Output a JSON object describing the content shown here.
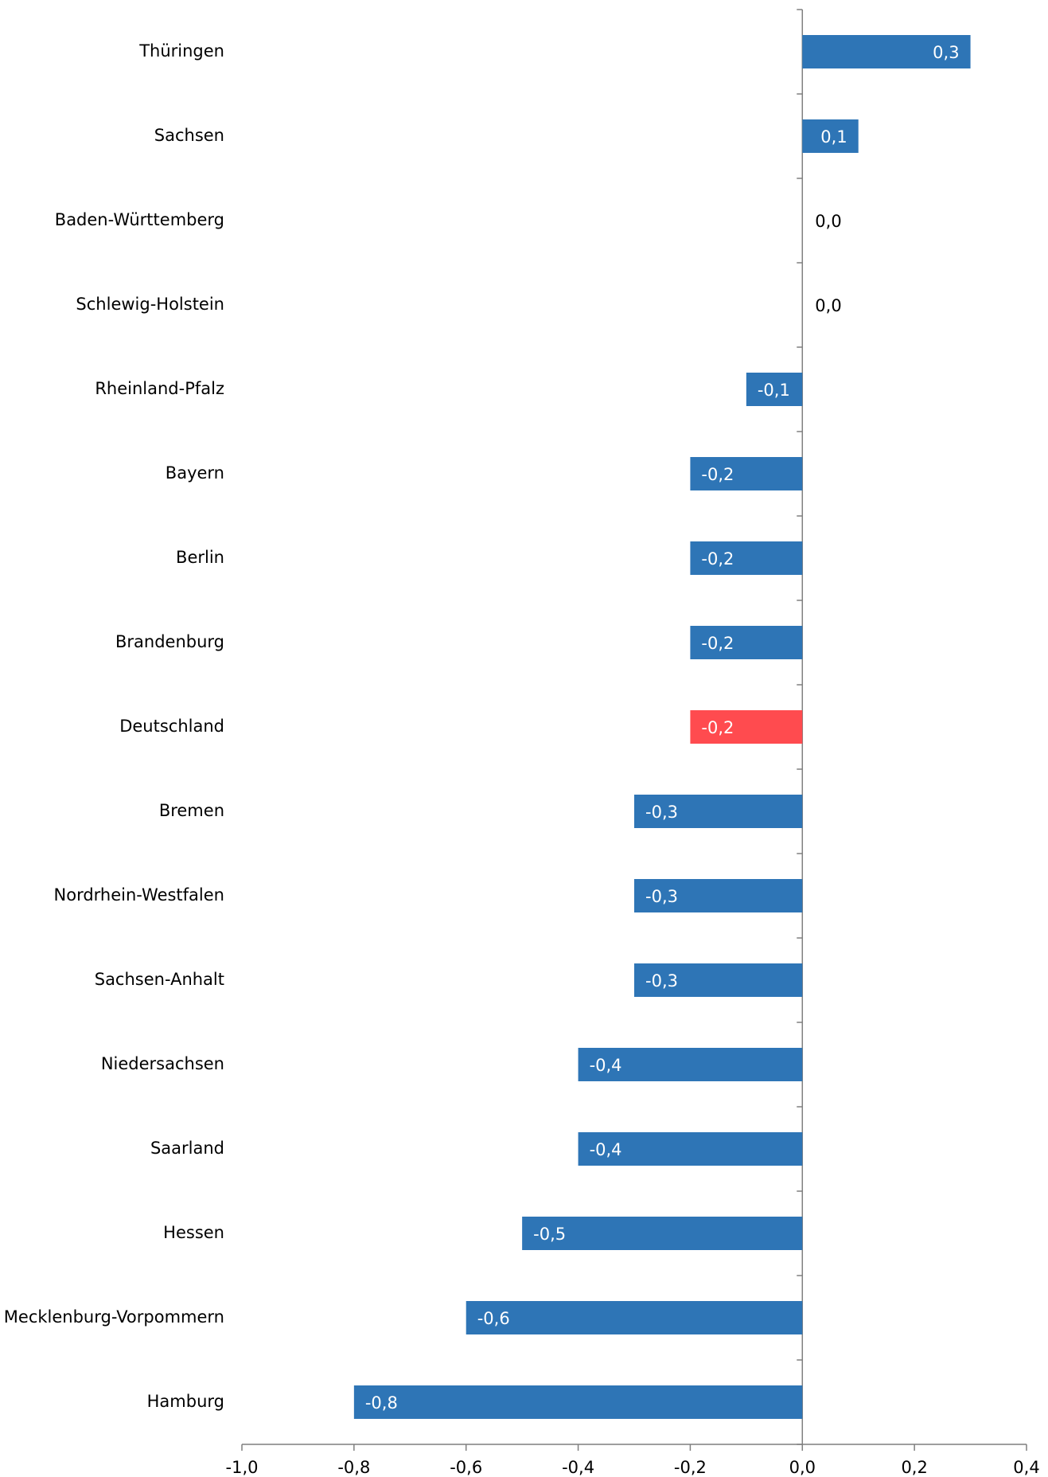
{
  "chart_data": {
    "type": "bar",
    "orientation": "horizontal",
    "categories": [
      "Thüringen",
      "Sachsen",
      "Baden-Württemberg",
      "Schlewig-Holstein",
      "Rheinland-Pfalz",
      "Bayern",
      "Berlin",
      "Brandenburg",
      "Deutschland",
      "Bremen",
      "Nordrhein-Westfalen",
      "Sachsen-Anhalt",
      "Niedersachsen",
      "Saarland",
      "Hessen",
      "Mecklenburg-Vorpommern",
      "Hamburg"
    ],
    "values": [
      0.3,
      0.1,
      0.0,
      0.0,
      -0.1,
      -0.2,
      -0.2,
      -0.2,
      -0.2,
      -0.3,
      -0.3,
      -0.3,
      -0.4,
      -0.4,
      -0.5,
      -0.6,
      -0.8
    ],
    "value_labels": [
      "0,3",
      "0,1",
      "0,0",
      "0,0",
      "-0,1",
      "-0,2",
      "-0,2",
      "-0,2",
      "-0,2",
      "-0,3",
      "-0,3",
      "-0,3",
      "-0,4",
      "-0,4",
      "-0,5",
      "-0,6",
      "-0,8"
    ],
    "colors": [
      "#2e75b6",
      "#2e75b6",
      "#2e75b6",
      "#2e75b6",
      "#2e75b6",
      "#2e75b6",
      "#2e75b6",
      "#2e75b6",
      "#ff4b4f",
      "#2e75b6",
      "#2e75b6",
      "#2e75b6",
      "#2e75b6",
      "#2e75b6",
      "#2e75b6",
      "#2e75b6",
      "#2e75b6"
    ],
    "xlim": [
      -1.0,
      0.4
    ],
    "xticks": [
      {
        "value": -1.0,
        "label": "-1,0"
      },
      {
        "value": -0.8,
        "label": "-0,8"
      },
      {
        "value": -0.6,
        "label": "-0,6"
      },
      {
        "value": -0.4,
        "label": "-0,4"
      },
      {
        "value": -0.2,
        "label": "-0,2"
      },
      {
        "value": 0.0,
        "label": "0,0"
      },
      {
        "value": 0.2,
        "label": "0,2"
      },
      {
        "value": 0.4,
        "label": "0,4"
      }
    ]
  }
}
